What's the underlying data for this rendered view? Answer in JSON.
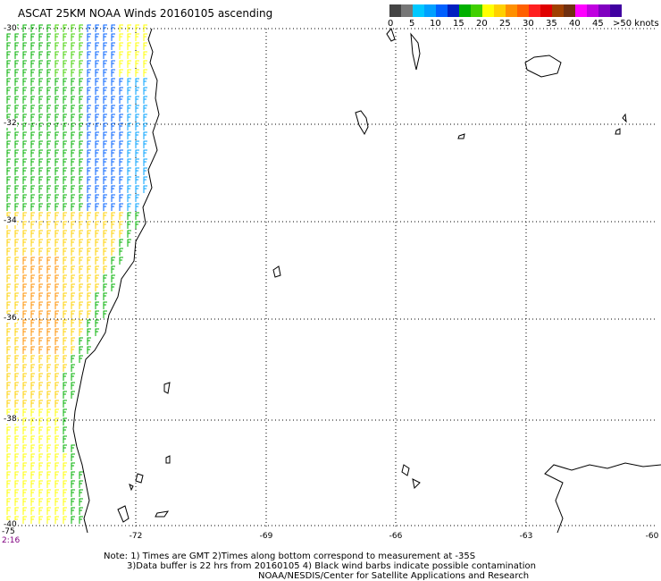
{
  "title": "ASCAT 25KM NOAA Winds 20160105 ascending",
  "colorbar": {
    "colors": [
      "#444444",
      "#777777",
      "#00c8ff",
      "#00a0ff",
      "#0060ff",
      "#0020c0",
      "#00b000",
      "#40d000",
      "#ffff00",
      "#ffd000",
      "#ff9000",
      "#ff6000",
      "#ff2020",
      "#e00000",
      "#a04000",
      "#703010",
      "#ff00ff",
      "#c000e0",
      "#8000c0",
      "#4000a0"
    ],
    "labels": [
      "0",
      "5",
      "10",
      "15",
      "20",
      "25",
      "30",
      "35",
      "40",
      "45",
      ">50 knots"
    ]
  },
  "map": {
    "lat_labels": [
      "-30",
      "-32",
      "-34",
      "-36",
      "-38",
      "-40"
    ],
    "lon_labels": [
      "-75",
      "-72",
      "-69",
      "-66",
      "-63",
      "-60"
    ],
    "time_label": "2:16"
  },
  "notes": {
    "line1": "Note: 1) Times are GMT 2)Times along bottom correspond to measurement at -35S",
    "line2": "3)Data buffer is 22 hrs from 20160105 4) Black wind barbs indicate possible contamination",
    "line3": "NOAA/NESDIS/Center for Satellite Applications and Research"
  }
}
